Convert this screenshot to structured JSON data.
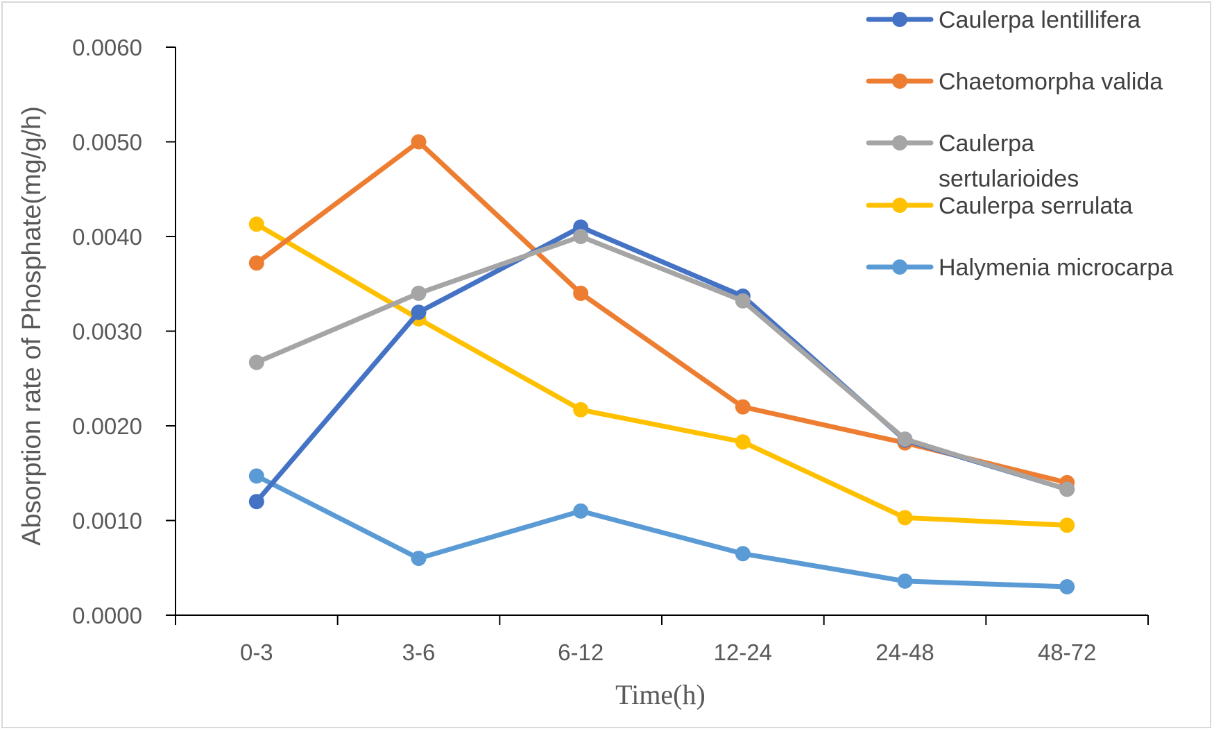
{
  "chart_data": {
    "type": "line",
    "title": "",
    "xlabel": "Time(h)",
    "ylabel": "Absorption rate of Phosphate(mg/g/h)",
    "categories": [
      "0-3",
      "3-6",
      "6-12",
      "12-24",
      "24-48",
      "48-72"
    ],
    "ylim": [
      0,
      0.006
    ],
    "yticks": [
      "0.0000",
      "0.0010",
      "0.0020",
      "0.0030",
      "0.0040",
      "0.0050",
      "0.0060"
    ],
    "grid": false,
    "legend_position": "top-right",
    "series": [
      {
        "name": "Caulerpa lentillifera",
        "legend_lines": [
          "Caulerpa lentillifera"
        ],
        "color": "#4472C4",
        "values": [
          0.0012,
          0.0032,
          0.0041,
          0.00337,
          0.00185,
          0.00133
        ]
      },
      {
        "name": "Chaetomorpha valida",
        "legend_lines": [
          "Chaetomorpha valida"
        ],
        "color": "#ED7D31",
        "values": [
          0.00372,
          0.005,
          0.0034,
          0.0022,
          0.00182,
          0.0014
        ]
      },
      {
        "name": "Caulerpa sertularioides",
        "legend_lines": [
          "Caulerpa",
          "sertularioides"
        ],
        "color": "#A5A5A5",
        "values": [
          0.00267,
          0.0034,
          0.004,
          0.00332,
          0.00186,
          0.00133
        ]
      },
      {
        "name": "Caulerpa serrulata",
        "legend_lines": [
          "Caulerpa serrulata"
        ],
        "color": "#FFC000",
        "values": [
          0.00413,
          0.00313,
          0.00217,
          0.00183,
          0.00103,
          0.00095
        ]
      },
      {
        "name": "Halymenia microcarpa",
        "legend_lines": [
          "Halymenia microcarpa"
        ],
        "color": "#5B9BD5",
        "values": [
          0.00147,
          0.0006,
          0.0011,
          0.00065,
          0.00036,
          0.0003
        ]
      }
    ]
  }
}
